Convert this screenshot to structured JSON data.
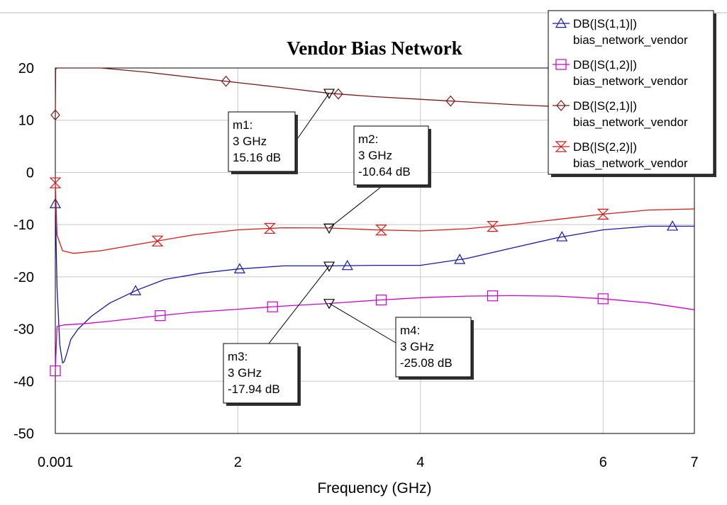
{
  "chart_data": {
    "type": "line",
    "title": "Vendor Bias Network",
    "xlabel": "Frequency (GHz)",
    "ylabel": "",
    "xlim": [
      0.001,
      7
    ],
    "ylim": [
      -50,
      20
    ],
    "x_ticks": [
      {
        "value": 0.001,
        "label": "0.001"
      },
      {
        "value": 2,
        "label": "2"
      },
      {
        "value": 4,
        "label": "4"
      },
      {
        "value": 6,
        "label": "6"
      },
      {
        "value": 7,
        "label": "7"
      }
    ],
    "y_ticks": [
      {
        "value": 20,
        "label": "20"
      },
      {
        "value": 10,
        "label": "10"
      },
      {
        "value": 0,
        "label": "0"
      },
      {
        "value": -10,
        "label": "-10"
      },
      {
        "value": -20,
        "label": "-20"
      },
      {
        "value": -30,
        "label": "-30"
      },
      {
        "value": -40,
        "label": "-40"
      },
      {
        "value": -50,
        "label": "-50"
      }
    ],
    "grid": true,
    "legend_position": "top-right",
    "series": [
      {
        "name": "DB(|S(1,1)|)",
        "subname": "bias_network_vendor",
        "color": "#1818a8",
        "marker": "triangle-up",
        "x": [
          0.001,
          0.02,
          0.05,
          0.08,
          0.1,
          0.13,
          0.17,
          0.25,
          0.4,
          0.6,
          0.9,
          1.2,
          1.6,
          2.0,
          2.5,
          3.0,
          3.5,
          4.0,
          4.5,
          5.0,
          5.5,
          6.0,
          6.5,
          7.0
        ],
        "y": [
          -6,
          -22,
          -33,
          -36.5,
          -36.2,
          -34.5,
          -32,
          -30,
          -27.5,
          -25,
          -22.5,
          -20.5,
          -19.3,
          -18.5,
          -17.9,
          -17.9,
          -17.8,
          -17.8,
          -16.5,
          -14.5,
          -12.5,
          -11,
          -10.3,
          -10.3
        ],
        "marker_x": [
          0.001,
          0.88,
          2.02,
          3.2,
          4.43,
          5.55,
          6.76
        ]
      },
      {
        "name": "DB(|S(1,2)|)",
        "subname": "bias_network_vendor",
        "color": "#cc00cc",
        "marker": "square",
        "x": [
          0.001,
          0.02,
          0.1,
          0.3,
          0.6,
          1.0,
          1.5,
          2.0,
          2.5,
          3.0,
          3.5,
          4.0,
          4.5,
          5.0,
          5.5,
          6.0,
          6.5,
          7.0
        ],
        "y": [
          -38,
          -29.5,
          -29.2,
          -29,
          -28.5,
          -27.7,
          -26.8,
          -26.2,
          -25.6,
          -25.1,
          -24.5,
          -24,
          -23.7,
          -23.6,
          -23.7,
          -24.2,
          -25,
          -26.3
        ],
        "marker_x": [
          0.001,
          1.15,
          2.38,
          3.57,
          4.79,
          6.0
        ]
      },
      {
        "name": "DB(|S(2,1)|)",
        "subname": "bias_network_vendor",
        "color": "#7a1a1a",
        "marker": "diamond",
        "x": [
          0.001,
          0.005,
          0.02,
          0.05,
          0.1,
          0.2,
          0.5,
          1.0,
          1.5,
          2.0,
          2.5,
          3.0,
          3.5,
          4.0,
          4.5,
          5.0,
          5.5,
          6.0
        ],
        "y": [
          11,
          19.8,
          20.4,
          20.5,
          20.4,
          20.3,
          20,
          19.2,
          18.2,
          17.2,
          16.2,
          15.16,
          14.5,
          14,
          13.5,
          13,
          12.6,
          12.3
        ],
        "marker_x": [
          0.001,
          1.87,
          3.1,
          4.33
        ]
      },
      {
        "name": "DB(|S(2,2)|)",
        "subname": "bias_network_vendor",
        "color": "#d41a1a",
        "marker": "hourglass",
        "x": [
          0.001,
          0.02,
          0.08,
          0.2,
          0.5,
          1.0,
          1.5,
          2.0,
          2.5,
          3.0,
          3.5,
          4.0,
          4.5,
          5.0,
          5.5,
          6.0,
          6.5,
          7.0
        ],
        "y": [
          -2,
          -12,
          -15,
          -15.5,
          -15,
          -13.5,
          -12,
          -11,
          -10.6,
          -10.64,
          -11,
          -11.2,
          -10.8,
          -10,
          -9,
          -8,
          -7.2,
          -7
        ],
        "marker_x": [
          0.001,
          1.12,
          2.35,
          3.57,
          4.79,
          6.0
        ]
      }
    ],
    "markers": [
      {
        "id": "m1",
        "x": 3,
        "y": 15.16,
        "name": "m1:",
        "freq": "3 GHz",
        "value": "15.16 dB"
      },
      {
        "id": "m2",
        "x": 3,
        "y": -10.64,
        "name": "m2:",
        "freq": "3 GHz",
        "value": "-10.64 dB"
      },
      {
        "id": "m3",
        "x": 3,
        "y": -17.94,
        "name": "m3:",
        "freq": "3 GHz",
        "value": "-17.94 dB"
      },
      {
        "id": "m4",
        "x": 3,
        "y": -25.08,
        "name": "m4:",
        "freq": "3 GHz",
        "value": "-25.08 dB"
      }
    ]
  }
}
